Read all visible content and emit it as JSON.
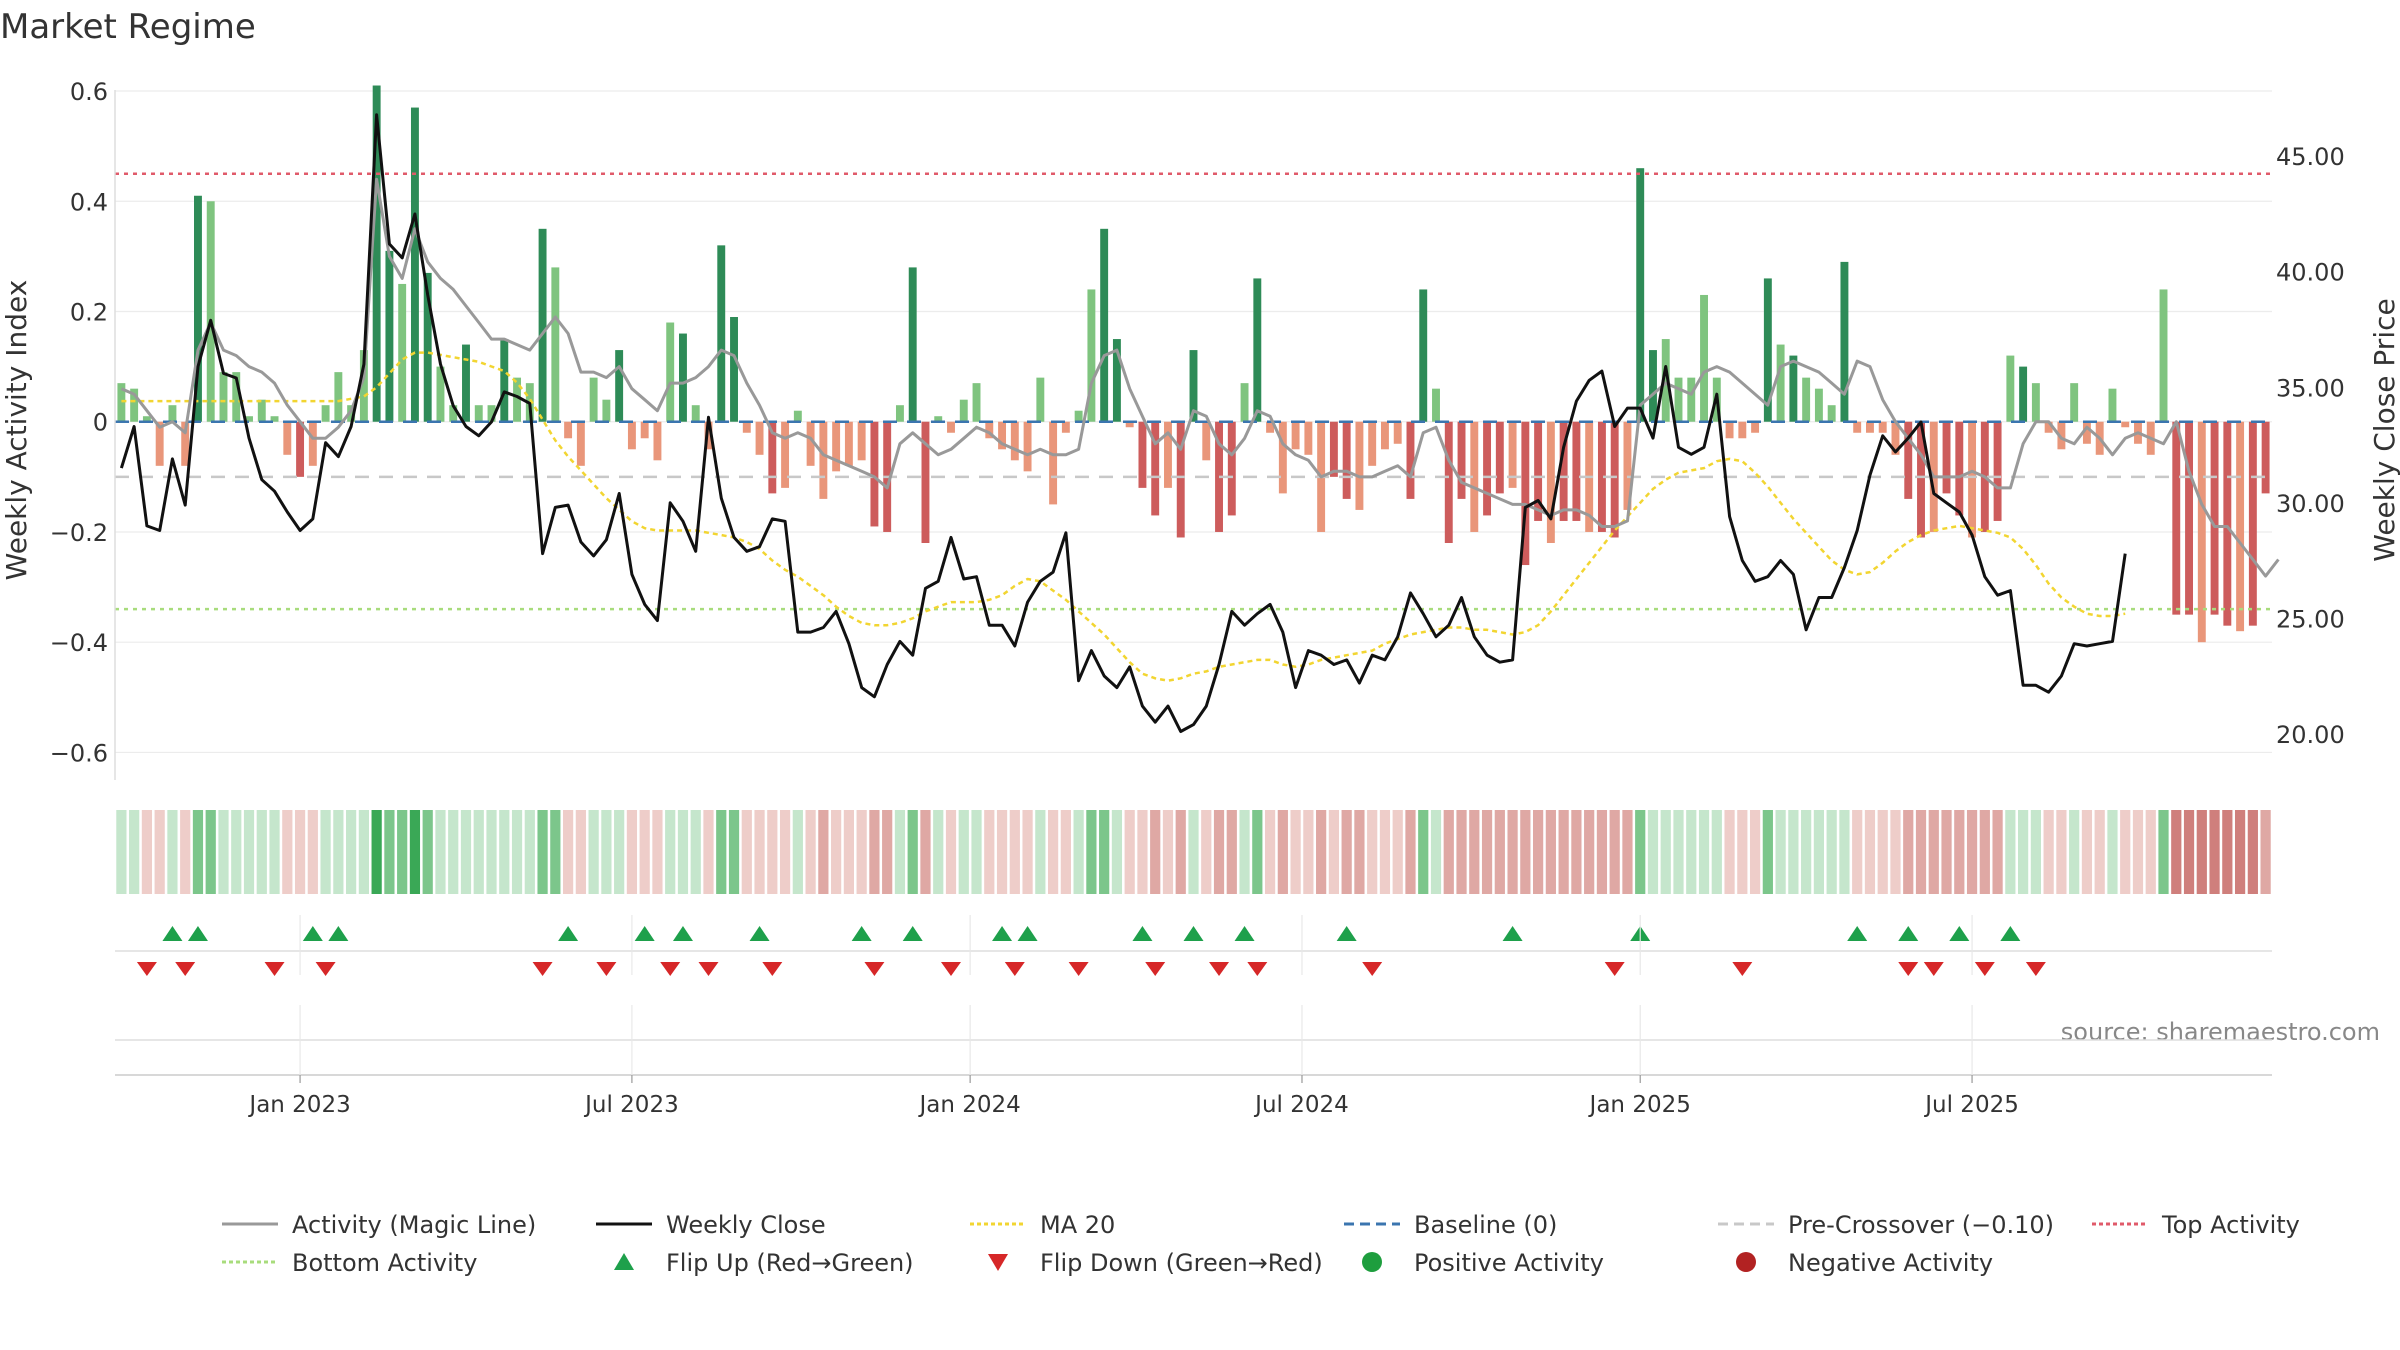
{
  "chart_data": {
    "type": "bar",
    "title": "Market Regime",
    "source": "source: sharemaestro.com",
    "ylabel_left": "Weekly Activity Index",
    "ylabel_right": "Weekly Close Price",
    "ylim_left": [
      -0.65,
      0.62
    ],
    "ylim_right": [
      18.0,
      48.3
    ],
    "left_ticks": [
      {
        "value": 0.6,
        "label": "0.6"
      },
      {
        "value": 0.4,
        "label": "0.4"
      },
      {
        "value": 0.2,
        "label": "0.2"
      },
      {
        "value": 0.0,
        "label": "0"
      },
      {
        "value": -0.2,
        "label": "−0.2"
      },
      {
        "value": -0.4,
        "label": "−0.4"
      },
      {
        "value": -0.6,
        "label": "−0.6"
      }
    ],
    "right_ticks": [
      {
        "value": 45,
        "label": "45.00"
      },
      {
        "value": 40,
        "label": "40.00"
      },
      {
        "value": 35,
        "label": "35.00"
      },
      {
        "value": 30,
        "label": "30.00"
      },
      {
        "value": 25,
        "label": "25.00"
      },
      {
        "value": 20,
        "label": "20.00"
      }
    ],
    "x_ticks": [
      {
        "week": 14.5,
        "label": "Jan 2023"
      },
      {
        "week": 40.5,
        "label": "Jul 2023"
      },
      {
        "week": 67,
        "label": "Jan 2024"
      },
      {
        "week": 93,
        "label": "Jul 2024"
      },
      {
        "week": 119.5,
        "label": "Jan 2025"
      },
      {
        "week": 145.5,
        "label": "Jul 2025"
      }
    ],
    "reference_lines": {
      "top_activity": 0.45,
      "baseline": 0.0,
      "pre_crossover": -0.1,
      "bottom_activity": -0.34
    },
    "series": [
      {
        "name": "Weekly Activity Index",
        "kind": "bars",
        "values": [
          0.07,
          0.06,
          0.01,
          -0.08,
          0.03,
          -0.08,
          0.41,
          0.4,
          0.09,
          0.09,
          0.01,
          0.04,
          0.01,
          -0.06,
          -0.1,
          -0.08,
          0.03,
          0.09,
          0.03,
          0.13,
          0.61,
          0.31,
          0.25,
          0.57,
          0.27,
          0.1,
          0.03,
          0.14,
          0.03,
          0.03,
          0.15,
          0.08,
          0.07,
          0.35,
          0.28,
          -0.03,
          -0.08,
          0.08,
          0.04,
          0.13,
          -0.05,
          -0.03,
          -0.07,
          0.18,
          0.16,
          0.03,
          -0.05,
          0.32,
          0.19,
          -0.02,
          -0.06,
          -0.13,
          -0.12,
          0.02,
          -0.08,
          -0.14,
          -0.09,
          -0.08,
          -0.07,
          -0.19,
          -0.2,
          0.03,
          0.28,
          -0.22,
          0.01,
          -0.02,
          0.04,
          0.07,
          -0.03,
          -0.05,
          -0.07,
          -0.09,
          0.08,
          -0.15,
          -0.02,
          0.02,
          0.24,
          0.35,
          0.15,
          -0.01,
          -0.12,
          -0.17,
          -0.12,
          -0.21,
          0.13,
          -0.07,
          -0.2,
          -0.17,
          0.07,
          0.26,
          -0.02,
          -0.13,
          -0.05,
          -0.06,
          -0.2,
          -0.1,
          -0.14,
          -0.16,
          -0.08,
          -0.05,
          -0.04,
          -0.14,
          0.24,
          0.06,
          -0.22,
          -0.14,
          -0.2,
          -0.17,
          -0.13,
          -0.12,
          -0.26,
          -0.18,
          -0.22,
          -0.18,
          -0.18,
          -0.2,
          -0.2,
          -0.21,
          -0.16,
          0.46,
          0.13,
          0.15,
          0.08,
          0.08,
          0.23,
          0.08,
          -0.03,
          -0.03,
          -0.02,
          0.26,
          0.14,
          0.12,
          0.08,
          0.06,
          0.03,
          0.29,
          -0.02,
          -0.02,
          -0.02,
          -0.06,
          -0.14,
          -0.21,
          -0.2,
          -0.13,
          -0.17,
          -0.21,
          -0.2,
          -0.18,
          0.12,
          0.1,
          0.07,
          -0.02,
          -0.05,
          0.07,
          -0.04,
          -0.06,
          0.06,
          -0.01,
          -0.04,
          -0.06,
          0.24,
          -0.35,
          -0.35,
          -0.4,
          -0.35,
          -0.37,
          -0.38,
          -0.37,
          -0.13
        ]
      },
      {
        "name": "Weekly Close",
        "kind": "line",
        "values": [
          31.5,
          33.3,
          29.0,
          28.8,
          31.9,
          29.9,
          35.9,
          37.9,
          35.6,
          35.4,
          32.8,
          31.0,
          30.5,
          29.6,
          28.8,
          29.3,
          32.6,
          32.0,
          33.3,
          36.0,
          46.8,
          41.2,
          40.6,
          42.5,
          39.0,
          36.0,
          34.2,
          33.3,
          32.9,
          33.5,
          34.8,
          34.6,
          34.3,
          27.8,
          29.8,
          29.9,
          28.3,
          27.7,
          28.4,
          30.4,
          26.9,
          25.6,
          24.9,
          30.0,
          29.2,
          27.9,
          33.7,
          30.2,
          28.5,
          27.9,
          28.1,
          29.3,
          29.2,
          24.4,
          24.4,
          24.6,
          25.3,
          23.9,
          22.0,
          21.6,
          23.0,
          24.0,
          23.4,
          26.3,
          26.6,
          28.5,
          26.7,
          26.8,
          24.7,
          24.7,
          23.8,
          25.7,
          26.6,
          27.0,
          28.7,
          22.3,
          23.6,
          22.5,
          22.0,
          22.9,
          21.2,
          20.5,
          21.2,
          20.1,
          20.4,
          21.2,
          23.0,
          25.3,
          24.7,
          25.2,
          25.6,
          24.4,
          22.0,
          23.6,
          23.4,
          23.0,
          23.2,
          22.2,
          23.4,
          23.2,
          24.2,
          26.1,
          25.2,
          24.2,
          24.7,
          25.9,
          24.2,
          23.4,
          23.1,
          23.2,
          29.8,
          30.1,
          29.3,
          32.4,
          34.4,
          35.3,
          35.7,
          33.3,
          34.1,
          34.1,
          32.8,
          35.9,
          32.4,
          32.1,
          32.4,
          34.7,
          29.4,
          27.5,
          26.6,
          26.8,
          27.5,
          26.9,
          24.5,
          25.9,
          25.9,
          27.2,
          28.8,
          31.2,
          32.9,
          32.2,
          32.8,
          33.5,
          30.4,
          30.0,
          29.6,
          28.6,
          26.8,
          26.0,
          26.2,
          22.1,
          22.1,
          21.8,
          22.5,
          23.9,
          23.8,
          23.9,
          24.0,
          27.8
        ]
      },
      {
        "name": "Activity (Magic Line)",
        "kind": "line",
        "values": [
          0.06,
          0.05,
          0.02,
          -0.01,
          0.0,
          -0.02,
          0.13,
          0.18,
          0.13,
          0.12,
          0.1,
          0.09,
          0.07,
          0.03,
          0.0,
          -0.03,
          -0.03,
          -0.01,
          0.02,
          0.08,
          0.44,
          0.3,
          0.26,
          0.35,
          0.29,
          0.26,
          0.24,
          0.21,
          0.18,
          0.15,
          0.15,
          0.14,
          0.13,
          0.16,
          0.19,
          0.16,
          0.09,
          0.09,
          0.08,
          0.1,
          0.06,
          0.04,
          0.02,
          0.07,
          0.07,
          0.08,
          0.1,
          0.13,
          0.12,
          0.07,
          0.03,
          -0.02,
          -0.03,
          -0.02,
          -0.03,
          -0.06,
          -0.07,
          -0.08,
          -0.09,
          -0.1,
          -0.12,
          -0.04,
          -0.02,
          -0.04,
          -0.06,
          -0.05,
          -0.03,
          -0.01,
          -0.02,
          -0.04,
          -0.05,
          -0.06,
          -0.05,
          -0.06,
          -0.06,
          -0.05,
          0.07,
          0.12,
          0.13,
          0.06,
          0.01,
          -0.04,
          -0.02,
          -0.05,
          0.02,
          0.01,
          -0.04,
          -0.06,
          -0.03,
          0.02,
          0.01,
          -0.04,
          -0.06,
          -0.07,
          -0.1,
          -0.09,
          -0.09,
          -0.1,
          -0.1,
          -0.09,
          -0.08,
          -0.1,
          -0.02,
          -0.01,
          -0.07,
          -0.11,
          -0.12,
          -0.13,
          -0.14,
          -0.15,
          -0.15,
          -0.16,
          -0.17,
          -0.16,
          -0.16,
          -0.17,
          -0.19,
          -0.19,
          -0.18,
          0.03,
          0.05,
          0.07,
          0.06,
          0.05,
          0.09,
          0.1,
          0.09,
          0.07,
          0.05,
          0.03,
          0.1,
          0.11,
          0.1,
          0.09,
          0.07,
          0.05,
          0.11,
          0.1,
          0.04,
          0.0,
          -0.03,
          -0.06,
          -0.1,
          -0.1,
          -0.1,
          -0.09,
          -0.1,
          -0.12,
          -0.12,
          -0.04,
          0.0,
          0.0,
          -0.03,
          -0.04,
          -0.01,
          -0.03,
          -0.06,
          -0.03,
          -0.02,
          -0.03,
          -0.04,
          0.0,
          -0.09,
          -0.15,
          -0.19,
          -0.19,
          -0.22,
          -0.25,
          -0.28,
          -0.25
        ]
      },
      {
        "name": "MA 20",
        "kind": "line",
        "values": [
          34.4,
          34.4,
          34.4,
          34.4,
          34.4,
          34.4,
          34.4,
          34.4,
          34.4,
          34.4,
          34.4,
          34.4,
          34.4,
          34.4,
          34.4,
          34.4,
          34.4,
          34.4,
          34.5,
          34.6,
          35.0,
          35.6,
          36.2,
          36.5,
          36.5,
          36.4,
          36.3,
          36.2,
          36.1,
          35.9,
          35.7,
          35.2,
          34.5,
          33.6,
          32.7,
          32.0,
          31.4,
          30.8,
          30.2,
          29.7,
          29.2,
          28.9,
          28.8,
          28.8,
          28.8,
          28.8,
          28.7,
          28.6,
          28.5,
          28.3,
          28.0,
          27.5,
          27.1,
          26.8,
          26.4,
          26.0,
          25.5,
          25.1,
          24.8,
          24.7,
          24.7,
          24.8,
          25.0,
          25.3,
          25.5,
          25.7,
          25.7,
          25.7,
          25.8,
          26.0,
          26.4,
          26.7,
          26.6,
          26.2,
          25.8,
          25.3,
          24.8,
          24.3,
          23.7,
          23.1,
          22.6,
          22.4,
          22.3,
          22.4,
          22.6,
          22.7,
          22.9,
          23.0,
          23.1,
          23.2,
          23.2,
          23.0,
          22.9,
          23.0,
          23.2,
          23.3,
          23.4,
          23.5,
          23.6,
          23.9,
          24.1,
          24.3,
          24.4,
          24.5,
          24.6,
          24.6,
          24.5,
          24.5,
          24.4,
          24.3,
          24.4,
          24.7,
          25.3,
          26.0,
          26.7,
          27.4,
          28.1,
          28.8,
          29.4,
          30.0,
          30.6,
          31.0,
          31.3,
          31.4,
          31.5,
          31.8,
          31.9,
          31.8,
          31.3,
          30.7,
          30.0,
          29.3,
          28.7,
          28.1,
          27.5,
          27.1,
          26.9,
          27.0,
          27.4,
          27.9,
          28.3,
          28.6,
          28.8,
          28.9,
          29.0,
          28.9,
          28.8,
          28.7,
          28.5,
          28.0,
          27.3,
          26.5,
          25.9,
          25.5,
          25.2,
          25.1,
          25.1,
          25.2
        ]
      }
    ],
    "regime_strip": [
      1,
      1,
      -1,
      -1,
      1,
      -1,
      2,
      2,
      1,
      1,
      1,
      1,
      1,
      -1,
      -1,
      -1,
      1,
      1,
      1,
      1,
      3,
      2,
      2,
      3,
      2,
      1,
      1,
      1,
      1,
      1,
      1,
      1,
      1,
      2,
      2,
      -1,
      -1,
      1,
      1,
      1,
      -1,
      -1,
      -1,
      1,
      1,
      1,
      -1,
      2,
      2,
      -1,
      -1,
      -1,
      -1,
      1,
      -1,
      -2,
      -1,
      -1,
      -1,
      -2,
      -2,
      1,
      2,
      -2,
      1,
      -1,
      1,
      1,
      -1,
      -1,
      -1,
      -1,
      1,
      -1,
      -1,
      1,
      2,
      2,
      1,
      -1,
      -1,
      -2,
      -1,
      -2,
      1,
      -1,
      -2,
      -2,
      1,
      2,
      -1,
      -2,
      -1,
      -1,
      -2,
      -1,
      -2,
      -2,
      -1,
      -1,
      -1,
      -2,
      2,
      1,
      -2,
      -2,
      -2,
      -2,
      -2,
      -2,
      -2,
      -2,
      -2,
      -2,
      -2,
      -2,
      -2,
      -2,
      -2,
      2,
      1,
      1,
      1,
      1,
      1,
      1,
      -1,
      -1,
      -1,
      2,
      1,
      1,
      1,
      1,
      1,
      1,
      -1,
      -1,
      -1,
      -1,
      -2,
      -2,
      -2,
      -2,
      -2,
      -2,
      -2,
      -2,
      1,
      1,
      1,
      -1,
      -1,
      1,
      -1,
      -1,
      1,
      -1,
      -1,
      -1,
      2,
      -3,
      -3,
      -3,
      -3,
      -3,
      -3,
      -3,
      -2
    ],
    "flip_up_weeks": [
      4,
      6,
      15,
      17,
      35,
      41,
      44,
      50,
      58,
      62,
      69,
      71,
      80,
      84,
      88,
      96,
      109,
      119,
      136,
      140,
      144,
      148
    ],
    "flip_down_weeks": [
      2,
      5,
      12,
      16,
      33,
      38,
      43,
      46,
      51,
      59,
      65,
      70,
      75,
      81,
      86,
      89,
      98,
      117,
      127,
      140,
      142,
      146,
      150
    ],
    "legend": [
      {
        "label": "Activity (Magic Line)",
        "icon": "line",
        "color": "#999999",
        "dash": ""
      },
      {
        "label": "Weekly Close",
        "icon": "line",
        "color": "#111111",
        "dash": ""
      },
      {
        "label": "MA 20",
        "icon": "line",
        "color": "#f2d531",
        "dash": "4 3"
      },
      {
        "label": "Baseline (0)",
        "icon": "line",
        "color": "#3b75af",
        "dash": "10 6"
      },
      {
        "label": "Pre-Crossover (−0.10)",
        "icon": "line",
        "color": "#c8c8c8",
        "dash": "10 6"
      },
      {
        "label": "Top Activity",
        "icon": "line",
        "color": "#e05a6a",
        "dash": "4 3"
      },
      {
        "label": "Bottom Activity",
        "icon": "line",
        "color": "#a8dc7c",
        "dash": "4 3"
      },
      {
        "label": "Flip Up (Red→Green)",
        "icon": "tri-up",
        "color": "#1ea04b",
        "dash": ""
      },
      {
        "label": "Flip Down (Green→Red)",
        "icon": "tri-down",
        "color": "#d62728",
        "dash": ""
      },
      {
        "label": "Positive Activity",
        "icon": "dot",
        "color": "#1e9e3e",
        "dash": ""
      },
      {
        "label": "Negative Activity",
        "icon": "dot",
        "color": "#b22222",
        "dash": ""
      }
    ],
    "colors": {
      "pos_strong": "#2e8b57",
      "pos_light": "#7fc47f",
      "neg_strong": "#cd5c5c",
      "neg_light": "#e9967a",
      "close": "#111111",
      "magic": "#999999",
      "ma20": "#f2d531",
      "baseline": "#3b75af",
      "pre_crossover": "#c8c8c8",
      "top": "#e05a6a",
      "bottom": "#a8dc7c",
      "flip_up": "#1ea04b",
      "flip_down": "#d62728"
    }
  }
}
